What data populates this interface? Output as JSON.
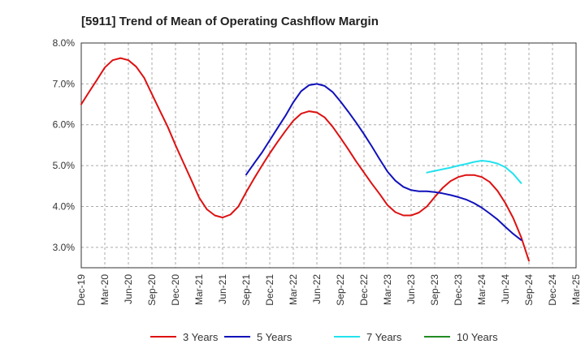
{
  "chart_data": {
    "type": "line",
    "title": "[5911]  Trend of Mean of Operating Cashflow Margin",
    "xlabel": "",
    "ylabel": "",
    "ylim": [
      2.5,
      8.0
    ],
    "yticks": [
      3.0,
      4.0,
      5.0,
      6.0,
      7.0,
      8.0
    ],
    "ytick_labels": [
      "3.0%",
      "4.0%",
      "5.0%",
      "6.0%",
      "7.0%",
      "8.0%"
    ],
    "x_categories": [
      "Dec-19",
      "Mar-20",
      "Jun-20",
      "Sep-20",
      "Dec-20",
      "Mar-21",
      "Jun-21",
      "Sep-21",
      "Dec-21",
      "Mar-22",
      "Jun-22",
      "Sep-22",
      "Dec-22",
      "Mar-23",
      "Jun-23",
      "Sep-23",
      "Dec-23",
      "Mar-24",
      "Jun-24",
      "Sep-24",
      "Dec-24",
      "Mar-25"
    ],
    "grid": true,
    "legend_position": "bottom",
    "series": [
      {
        "name": "3 Years",
        "color": "#dd1111",
        "points": [
          [
            0,
            6.5
          ],
          [
            0.33,
            6.8
          ],
          [
            0.67,
            7.1
          ],
          [
            1,
            7.4
          ],
          [
            1.33,
            7.58
          ],
          [
            1.67,
            7.63
          ],
          [
            2,
            7.58
          ],
          [
            2.33,
            7.42
          ],
          [
            2.67,
            7.15
          ],
          [
            3,
            6.75
          ],
          [
            3.33,
            6.35
          ],
          [
            3.67,
            5.95
          ],
          [
            4,
            5.5
          ],
          [
            4.33,
            5.08
          ],
          [
            4.67,
            4.65
          ],
          [
            5,
            4.22
          ],
          [
            5.33,
            3.93
          ],
          [
            5.67,
            3.78
          ],
          [
            6,
            3.73
          ],
          [
            6.33,
            3.8
          ],
          [
            6.67,
            4.0
          ],
          [
            7,
            4.35
          ],
          [
            7.33,
            4.68
          ],
          [
            7.67,
            5.0
          ],
          [
            8,
            5.3
          ],
          [
            8.33,
            5.58
          ],
          [
            8.67,
            5.85
          ],
          [
            9,
            6.1
          ],
          [
            9.33,
            6.27
          ],
          [
            9.67,
            6.33
          ],
          [
            10,
            6.3
          ],
          [
            10.33,
            6.18
          ],
          [
            10.67,
            5.95
          ],
          [
            11,
            5.68
          ],
          [
            11.33,
            5.4
          ],
          [
            11.67,
            5.1
          ],
          [
            12,
            4.83
          ],
          [
            12.33,
            4.56
          ],
          [
            12.67,
            4.3
          ],
          [
            13,
            4.03
          ],
          [
            13.33,
            3.86
          ],
          [
            13.67,
            3.78
          ],
          [
            14,
            3.78
          ],
          [
            14.33,
            3.85
          ],
          [
            14.67,
            4.0
          ],
          [
            15,
            4.23
          ],
          [
            15.33,
            4.45
          ],
          [
            15.67,
            4.62
          ],
          [
            16,
            4.72
          ],
          [
            16.33,
            4.77
          ],
          [
            16.67,
            4.77
          ],
          [
            17,
            4.72
          ],
          [
            17.33,
            4.6
          ],
          [
            17.67,
            4.38
          ],
          [
            18,
            4.08
          ],
          [
            18.33,
            3.72
          ],
          [
            18.67,
            3.25
          ],
          [
            19,
            2.67
          ]
        ]
      },
      {
        "name": "5 Years",
        "color": "#1111bb",
        "points": [
          [
            7,
            4.78
          ],
          [
            7.33,
            5.05
          ],
          [
            7.67,
            5.32
          ],
          [
            8,
            5.62
          ],
          [
            8.33,
            5.92
          ],
          [
            8.67,
            6.22
          ],
          [
            9,
            6.55
          ],
          [
            9.33,
            6.82
          ],
          [
            9.67,
            6.97
          ],
          [
            10,
            7.0
          ],
          [
            10.33,
            6.95
          ],
          [
            10.67,
            6.8
          ],
          [
            11,
            6.57
          ],
          [
            11.33,
            6.32
          ],
          [
            11.67,
            6.05
          ],
          [
            12,
            5.77
          ],
          [
            12.33,
            5.47
          ],
          [
            12.67,
            5.15
          ],
          [
            13,
            4.85
          ],
          [
            13.33,
            4.63
          ],
          [
            13.67,
            4.48
          ],
          [
            14,
            4.4
          ],
          [
            14.33,
            4.37
          ],
          [
            14.67,
            4.37
          ],
          [
            15,
            4.35
          ],
          [
            15.33,
            4.32
          ],
          [
            15.67,
            4.28
          ],
          [
            16,
            4.23
          ],
          [
            16.33,
            4.17
          ],
          [
            16.67,
            4.08
          ],
          [
            17,
            3.97
          ],
          [
            17.33,
            3.83
          ],
          [
            17.67,
            3.68
          ],
          [
            18,
            3.5
          ],
          [
            18.33,
            3.33
          ],
          [
            18.67,
            3.18
          ]
        ]
      },
      {
        "name": "7 Years",
        "color": "#22e2ee",
        "points": [
          [
            14.67,
            4.83
          ],
          [
            15,
            4.87
          ],
          [
            15.33,
            4.91
          ],
          [
            15.67,
            4.95
          ],
          [
            16,
            5.0
          ],
          [
            16.33,
            5.04
          ],
          [
            16.67,
            5.09
          ],
          [
            17,
            5.12
          ],
          [
            17.33,
            5.1
          ],
          [
            17.67,
            5.05
          ],
          [
            18,
            4.96
          ],
          [
            18.33,
            4.8
          ],
          [
            18.67,
            4.57
          ]
        ]
      },
      {
        "name": "10 Years",
        "color": "#228b22",
        "points": []
      }
    ]
  }
}
